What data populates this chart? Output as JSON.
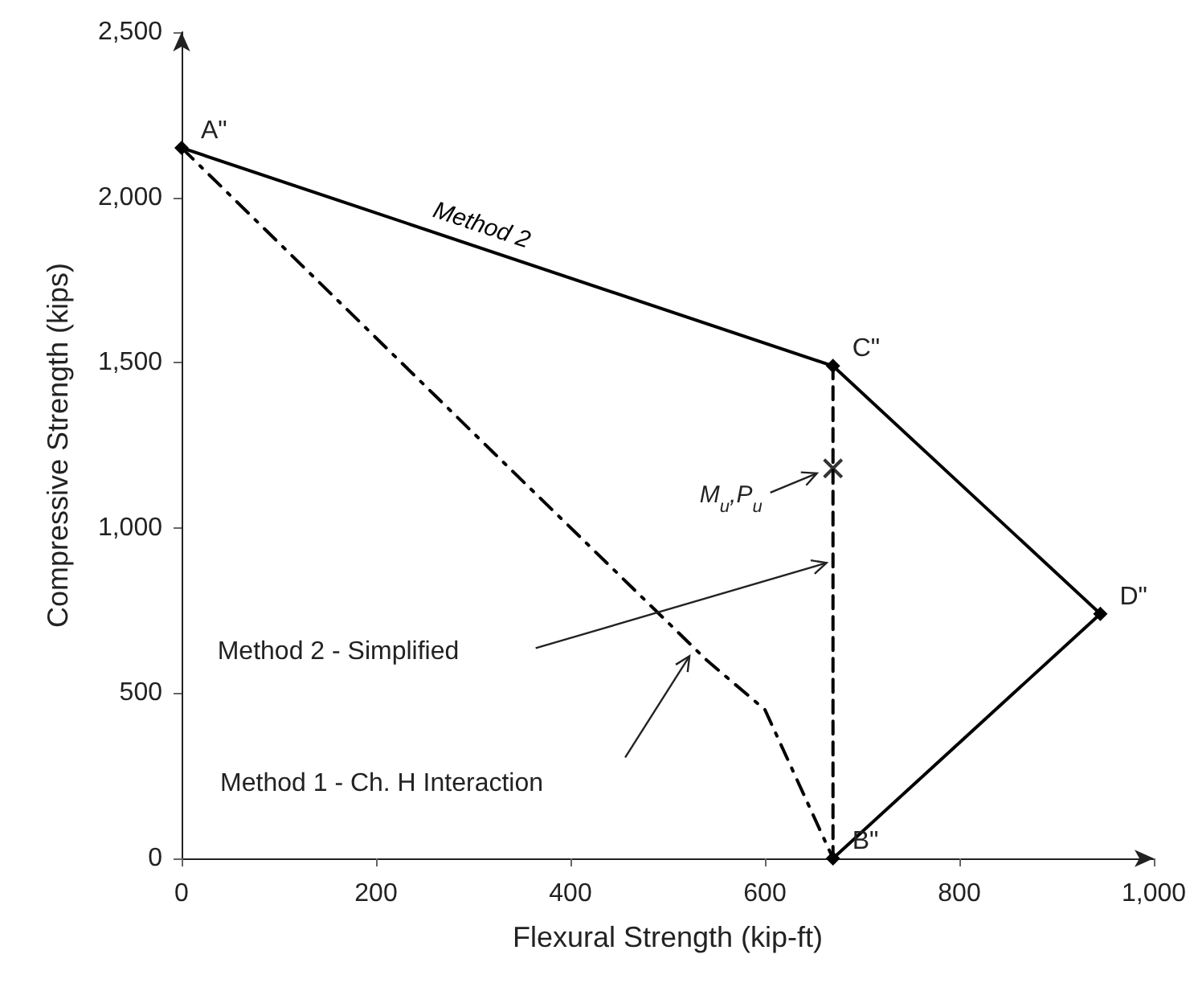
{
  "chart_data": {
    "type": "line",
    "xlabel": "Flexural Strength (kip-ft)",
    "ylabel": "Compressive Strength (kips)",
    "xlim": [
      0,
      1000
    ],
    "xticks": [
      0,
      200,
      400,
      600,
      800,
      {
        "value": 1000,
        "label": "1,000"
      }
    ],
    "ylim": [
      0,
      2500
    ],
    "yticks": [
      0,
      500,
      {
        "value": 1000,
        "label": "1,000"
      },
      {
        "value": 1500,
        "label": "1,500"
      },
      {
        "value": 2000,
        "label": "2,000"
      },
      {
        "value": 2500,
        "label": "2,500"
      }
    ],
    "grid": false,
    "legend": false,
    "series": [
      {
        "name": "Method 2",
        "color": "#000000",
        "x": [
          0,
          670,
          945,
          670
        ],
        "values": [
          2150,
          1490,
          740,
          0
        ],
        "marker": "diamond",
        "line_style": "solid"
      },
      {
        "color": "#000000",
        "x": [
          670,
          670
        ],
        "values": [
          1490,
          0
        ],
        "marker": "none",
        "line_style": "dashed"
      },
      {
        "color": "#000000",
        "x": [
          0,
          320,
          540,
          600,
          670
        ],
        "values": [
          2150,
          1230,
          600,
          450,
          0
        ],
        "marker": "none",
        "line_style": "dotted"
      },
      {
        "type": "scatter",
        "color": "#000000",
        "x": [
          670
        ],
        "values": [
          1180
        ],
        "marker": "cross"
      }
    ],
    "annotations": [
      {
        "text": "A\"",
        "x": 0,
        "y": 2150
      },
      {
        "text": "C\"",
        "x": 670,
        "y": 1490
      },
      {
        "text": "D\"",
        "x": 945,
        "y": 740
      },
      {
        "text": "B\"",
        "x": 670,
        "y": 0
      },
      "Method 2 - Simplified",
      "Method 1 - Ch. H Interaction",
      "M$_{u}$,P$_{u}$"
    ]
  }
}
